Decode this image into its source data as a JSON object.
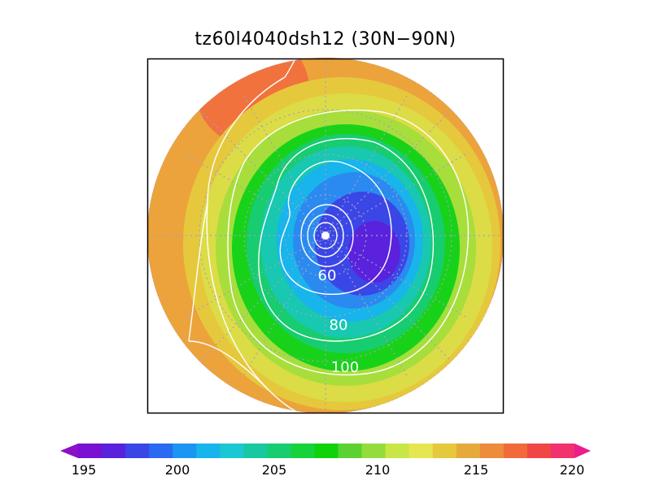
{
  "title": "tz60l4040dsh12 (30N−90N)",
  "map": {
    "projection": "polar stereographic",
    "lat_range": [
      "30N",
      "90N"
    ],
    "contour_labels": [
      "60",
      "80",
      "100"
    ]
  },
  "colorbar": {
    "tick_labels": [
      "195",
      "200",
      "205",
      "210",
      "215",
      "220"
    ],
    "colors": [
      "#8c10c8",
      "#7a10d2",
      "#5a22dc",
      "#3b46e6",
      "#2a6af0",
      "#1a96f2",
      "#18b4ec",
      "#1ac8d4",
      "#18c8a0",
      "#18cc70",
      "#18d23c",
      "#10d20a",
      "#5cd232",
      "#94dc3c",
      "#c8e646",
      "#e6e650",
      "#e6c83c",
      "#e6aa3c",
      "#ec8c3c",
      "#f26a3c",
      "#f04646",
      "#f0326e",
      "#ea1e8c"
    ]
  }
}
